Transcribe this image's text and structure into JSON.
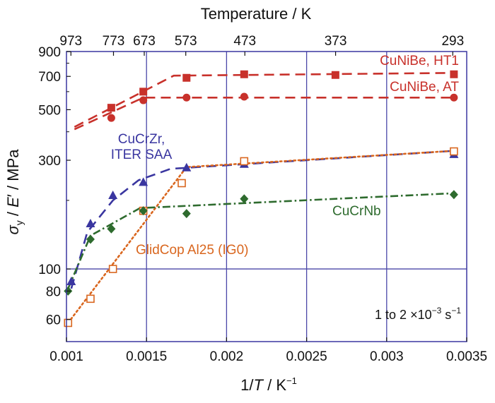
{
  "chart_data": {
    "type": "scatter",
    "title": "",
    "x": {
      "label_parts": [
        "1/",
        "T",
        " / K",
        "−1"
      ],
      "scale": "linear",
      "range": [
        0.001,
        0.0035
      ],
      "ticks": [
        0.001,
        0.0015,
        0.002,
        0.0025,
        0.003,
        0.0035
      ],
      "tick_labels": [
        "0.001",
        "0.0015",
        "0.002",
        "0.0025",
        "0.003",
        "0.0035"
      ]
    },
    "x_top": {
      "label": "Temperature / K",
      "ticks_K": [
        973,
        773,
        673,
        573,
        473,
        373,
        293
      ],
      "tick_labels": [
        "973",
        "773",
        "673",
        "573",
        "473",
        "373",
        "293"
      ]
    },
    "y": {
      "label_parts": [
        "σ",
        "y",
        " / ",
        "E",
        "′",
        " / MPa"
      ],
      "scale": "log",
      "range": [
        48,
        900
      ],
      "ticks": [
        60,
        80,
        100,
        300,
        500,
        700,
        900
      ],
      "tick_labels": [
        "60",
        "80",
        "100",
        "300",
        "500",
        "700",
        "900"
      ],
      "gridlines": [
        100
      ]
    },
    "grid": true,
    "annotation": {
      "text": "1 to 2 ×10",
      "exponent": "−3",
      "unit": " s",
      "unit_exponent": "−1"
    },
    "series": [
      {
        "name": "CuNiBe, HT1",
        "color": "#c8312b",
        "marker": "square-filled",
        "line": "dashed",
        "points": [
          [
            0.00128,
            510
          ],
          [
            0.00148,
            600
          ],
          [
            0.00175,
            690
          ],
          [
            0.00211,
            715
          ],
          [
            0.00268,
            710
          ],
          [
            0.00342,
            715
          ]
        ],
        "fit": [
          [
            0.00105,
            420
          ],
          [
            0.00167,
            705
          ],
          [
            0.00342,
            725
          ]
        ]
      },
      {
        "name": "CuNiBe, AT",
        "color": "#c8312b",
        "marker": "circle-filled",
        "line": "dashed",
        "points": [
          [
            0.00128,
            460
          ],
          [
            0.00148,
            550
          ],
          [
            0.00175,
            565
          ],
          [
            0.00211,
            570
          ],
          [
            0.00342,
            565
          ]
        ],
        "fit": [
          [
            0.00105,
            410
          ],
          [
            0.00148,
            565
          ],
          [
            0.00342,
            565
          ]
        ]
      },
      {
        "name": "CuCrZr,\nITER SAA",
        "color": "#3a36a0",
        "marker": "triangle-filled",
        "line": "dashed",
        "points": [
          [
            0.00103,
            88
          ],
          [
            0.00115,
            158
          ],
          [
            0.00129,
            210
          ],
          [
            0.00148,
            240
          ],
          [
            0.00175,
            278
          ],
          [
            0.00211,
            288
          ],
          [
            0.00342,
            318
          ]
        ],
        "fit": [
          [
            0.00103,
            82
          ],
          [
            0.00113,
            145
          ],
          [
            0.00129,
            200
          ],
          [
            0.00145,
            245
          ],
          [
            0.00165,
            275
          ],
          [
            0.00342,
            330
          ]
        ]
      },
      {
        "name": "GlidCop Al25 (IG0)",
        "color": "#d9661e",
        "marker": "square-open",
        "line": "dotted",
        "points": [
          [
            0.00101,
            58
          ],
          [
            0.00115,
            74
          ],
          [
            0.00129,
            100
          ],
          [
            0.00148,
            180
          ],
          [
            0.00172,
            238
          ],
          [
            0.00211,
            297
          ],
          [
            0.00342,
            328
          ]
        ],
        "fit": [
          [
            0.00101,
            58
          ],
          [
            0.00175,
            280
          ],
          [
            0.00342,
            330
          ]
        ]
      },
      {
        "name": "CuCrNb",
        "color": "#2e6b2e",
        "marker": "diamond-filled",
        "line": "dashdot",
        "points": [
          [
            0.00101,
            80
          ],
          [
            0.00115,
            135
          ],
          [
            0.00128,
            150
          ],
          [
            0.00148,
            180
          ],
          [
            0.00175,
            175
          ],
          [
            0.00211,
            203
          ],
          [
            0.00342,
            212
          ]
        ],
        "fit": [
          [
            0.00101,
            82
          ],
          [
            0.00115,
            140
          ],
          [
            0.00146,
            185
          ],
          [
            0.00342,
            215
          ]
        ]
      }
    ]
  }
}
